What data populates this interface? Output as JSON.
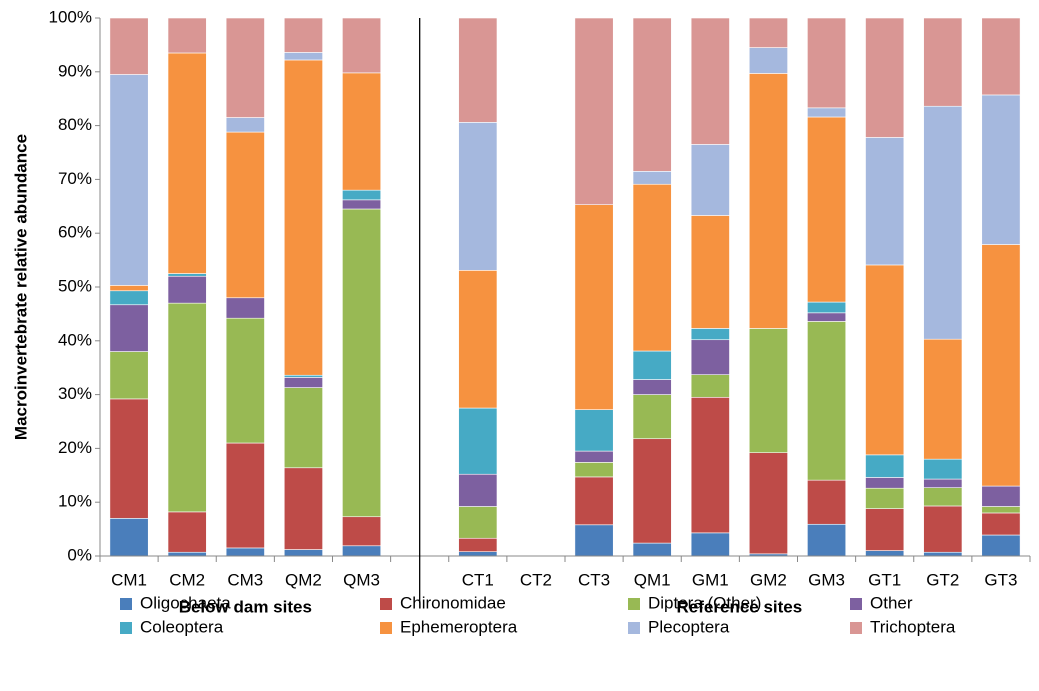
{
  "chart_data": {
    "type": "stacked_bar_100",
    "y_label": "Macroinvertebrate relative abundance",
    "annotations": [
      "Below dam sites",
      "Reference sites"
    ],
    "categories": [
      "CM1",
      "CM2",
      "CM3",
      "QM2",
      "QM3",
      null,
      "CT1",
      "CT2",
      "CT3",
      "QM1",
      "GM1",
      "GM2",
      "GM3",
      "GT1",
      "GT2",
      "GT3"
    ],
    "ylim": [
      0,
      100
    ],
    "yticks": [
      {
        "value": 0,
        "label": "0%"
      },
      {
        "value": 10,
        "label": "10%"
      },
      {
        "value": 20,
        "label": "20%"
      },
      {
        "value": 30,
        "label": "30%"
      },
      {
        "value": 40,
        "label": "40%"
      },
      {
        "value": 50,
        "label": "50%"
      },
      {
        "value": 60,
        "label": "60%"
      },
      {
        "value": 70,
        "label": "70%"
      },
      {
        "value": 80,
        "label": "80%"
      },
      {
        "value": 90,
        "label": "90%"
      },
      {
        "value": 100,
        "label": "100%"
      }
    ],
    "grid": false,
    "series": [
      {
        "name": "Oligochaeta",
        "color": "#4a7ebb",
        "values": [
          7,
          0.7,
          1.5,
          1.2,
          1.9,
          null,
          0.8,
          null,
          5.8,
          2.4,
          4.3,
          0.4,
          5.9,
          1,
          0.7,
          3.9
        ]
      },
      {
        "name": "Chironomidae",
        "color": "#be4b48",
        "values": [
          22.2,
          7.5,
          19.5,
          15.2,
          5.4,
          null,
          2.5,
          null,
          8.9,
          19.4,
          25.2,
          18.8,
          8.2,
          7.8,
          8.6,
          4.1
        ]
      },
      {
        "name": "Diptera (Other)",
        "color": "#98b954",
        "values": [
          8.8,
          38.8,
          23.2,
          14.9,
          57.2,
          null,
          5.9,
          null,
          2.7,
          8.2,
          4.2,
          23.1,
          29.5,
          3.8,
          3.4,
          1.2
        ]
      },
      {
        "name": "Other",
        "color": "#7d60a0",
        "values": [
          8.7,
          5,
          3.8,
          1.9,
          1.7,
          null,
          6,
          null,
          2.1,
          2.8,
          6.5,
          0,
          1.6,
          2,
          1.6,
          3.8
        ]
      },
      {
        "name": "Coleoptera",
        "color": "#46aac5",
        "values": [
          2.6,
          0.5,
          0,
          0.4,
          1.8,
          null,
          12.3,
          null,
          7.7,
          5.3,
          2.1,
          0,
          2,
          4.2,
          3.7,
          0
        ]
      },
      {
        "name": "Ephemeroptera",
        "color": "#f69240",
        "values": [
          1,
          41,
          30.8,
          58.6,
          21.8,
          null,
          25.6,
          null,
          38.1,
          31,
          21,
          47.4,
          34.4,
          35.3,
          22.3,
          44.9
        ]
      },
      {
        "name": "Plecoptera",
        "color": "#a5b8de",
        "values": [
          39.2,
          0,
          2.7,
          1.4,
          0,
          null,
          27.5,
          null,
          0,
          2.4,
          13.2,
          4.8,
          1.7,
          23.7,
          43.3,
          27.8
        ]
      },
      {
        "name": "Trichoptera",
        "color": "#d99694",
        "values": [
          10.5,
          6.5,
          18.5,
          6.4,
          10.2,
          null,
          19.4,
          null,
          34.7,
          28.5,
          23.5,
          5.5,
          16.7,
          22.2,
          16.4,
          14.3
        ]
      }
    ]
  }
}
